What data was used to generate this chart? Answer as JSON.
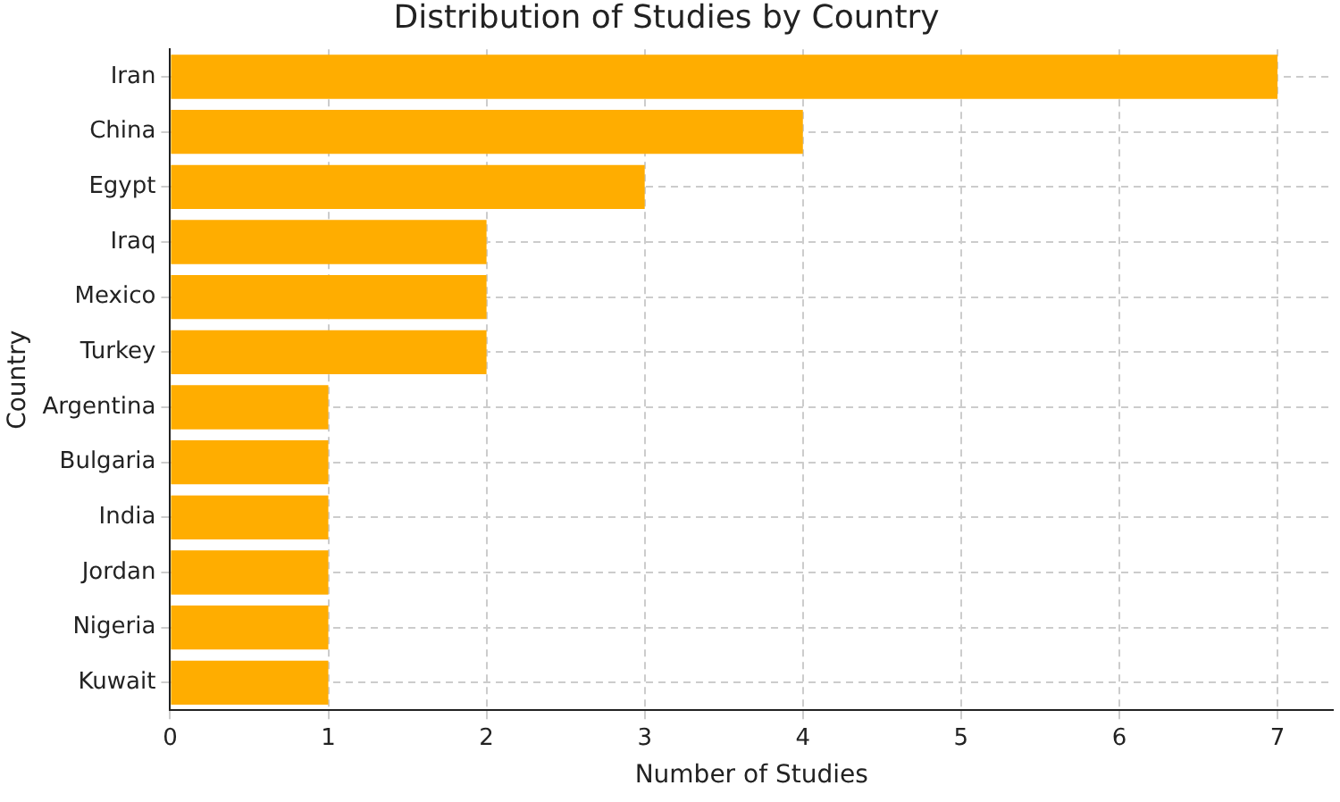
{
  "chart_data": {
    "type": "bar",
    "orientation": "horizontal",
    "title": "Distribution of Studies by Country",
    "xlabel": "Number of Studies",
    "ylabel": "Country",
    "categories": [
      "Iran",
      "China",
      "Egypt",
      "Iraq",
      "Mexico",
      "Turkey",
      "Argentina",
      "Bulgaria",
      "India",
      "Jordan",
      "Nigeria",
      "Kuwait"
    ],
    "values": [
      7,
      4,
      3,
      2,
      2,
      2,
      1,
      1,
      1,
      1,
      1,
      1
    ],
    "color": "#ffad00",
    "xlim": [
      0,
      7.35
    ],
    "xticks": [
      0,
      1,
      2,
      3,
      4,
      5,
      6,
      7
    ],
    "grid": true,
    "line_style": "dashed",
    "legend": false
  }
}
